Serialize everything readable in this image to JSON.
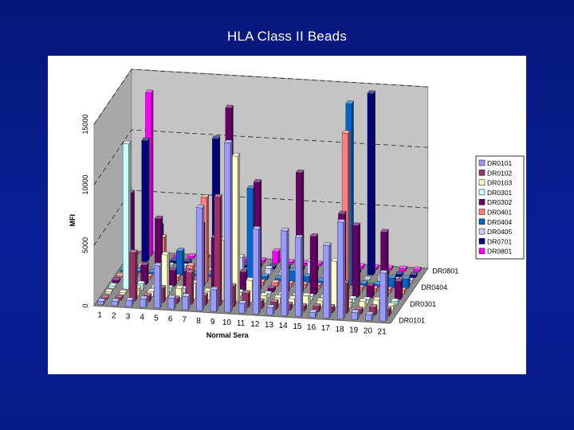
{
  "slide": {
    "title": "HLA Class II Beads"
  },
  "chart_data": {
    "type": "bar",
    "title": "HLA Class II Beads",
    "xlabel": "Normal Sera",
    "ylabel": "MFI",
    "ylim": [
      0,
      15000
    ],
    "yticks": [
      "0",
      "5000",
      "10000",
      "15000"
    ],
    "depth_ticks": [
      "DR0801",
      "DR0404",
      "DR0301",
      "DR0101"
    ],
    "legend_position": "right",
    "grid": true,
    "categories": [
      "1",
      "2",
      "3",
      "4",
      "5",
      "6",
      "7",
      "8",
      "9",
      "10",
      "11",
      "12",
      "13",
      "14",
      "15",
      "16",
      "17",
      "18",
      "19",
      "20",
      "21"
    ],
    "series": [
      {
        "name": "DR0101",
        "color": "#9999ff",
        "values": [
          300,
          350,
          500,
          700,
          3500,
          900,
          1100,
          8500,
          1800,
          14000,
          800,
          7000,
          600,
          7000,
          6500,
          400,
          6000,
          8000,
          600,
          500,
          4000
        ]
      },
      {
        "name": "DR0102",
        "color": "#993366",
        "values": [
          100,
          200,
          4000,
          500,
          1200,
          400,
          2600,
          800,
          9000,
          1700,
          1200,
          600,
          600,
          450,
          400,
          450,
          450,
          2500,
          400,
          650,
          550
        ]
      },
      {
        "name": "DR0103",
        "color": "#ffffcc",
        "values": [
          150,
          150,
          600,
          400,
          3500,
          800,
          1300,
          700,
          5000,
          12000,
          1800,
          600,
          500,
          500,
          800,
          450,
          3800,
          500,
          600,
          800,
          400
        ]
      },
      {
        "name": "DR0301",
        "color": "#ccffff",
        "values": [
          200,
          12000,
          500,
          300,
          300,
          300,
          300,
          300,
          300,
          300,
          300,
          300,
          300,
          300,
          300,
          300,
          300,
          300,
          300,
          300,
          300
        ]
      },
      {
        "name": "DR0302",
        "color": "#660066",
        "values": [
          200,
          7500,
          1600,
          5500,
          1300,
          1300,
          5200,
          4200,
          15000,
          1500,
          9000,
          300,
          800,
          10000,
          4800,
          1500,
          6800,
          5900,
          1000,
          5500,
          1500
        ]
      },
      {
        "name": "DR0401",
        "color": "#ff8080",
        "values": [
          100,
          200,
          200,
          3500,
          300,
          1300,
          7000,
          400,
          300,
          300,
          300,
          300,
          300,
          300,
          300,
          300,
          13000,
          300,
          300,
          300,
          300
        ]
      },
      {
        "name": "DR0404",
        "color": "#0066cc",
        "values": [
          100,
          150,
          100,
          800,
          2000,
          200,
          200,
          200,
          200,
          7500,
          300,
          200,
          900,
          500,
          200,
          500,
          15000,
          200,
          200,
          800,
          800
        ]
      },
      {
        "name": "DR0405",
        "color": "#ccccff",
        "values": [
          100,
          100,
          100,
          300,
          300,
          100,
          100,
          100,
          1300,
          300,
          500,
          300,
          100,
          1300,
          100,
          200,
          500,
          100,
          500,
          200,
          200
        ]
      },
      {
        "name": "DR0701",
        "color": "#000080",
        "values": [
          100,
          10000,
          3000,
          200,
          200,
          200,
          10500,
          200,
          200,
          200,
          200,
          200,
          200,
          200,
          200,
          200,
          200,
          15000,
          200,
          200,
          200
        ]
      },
      {
        "name": "DR0801",
        "color": "#ff00ff",
        "values": [
          100,
          13500,
          200,
          200,
          200,
          200,
          200,
          200,
          200,
          200,
          1000,
          200,
          200,
          200,
          200,
          200,
          200,
          200,
          200,
          200,
          200
        ]
      }
    ]
  }
}
